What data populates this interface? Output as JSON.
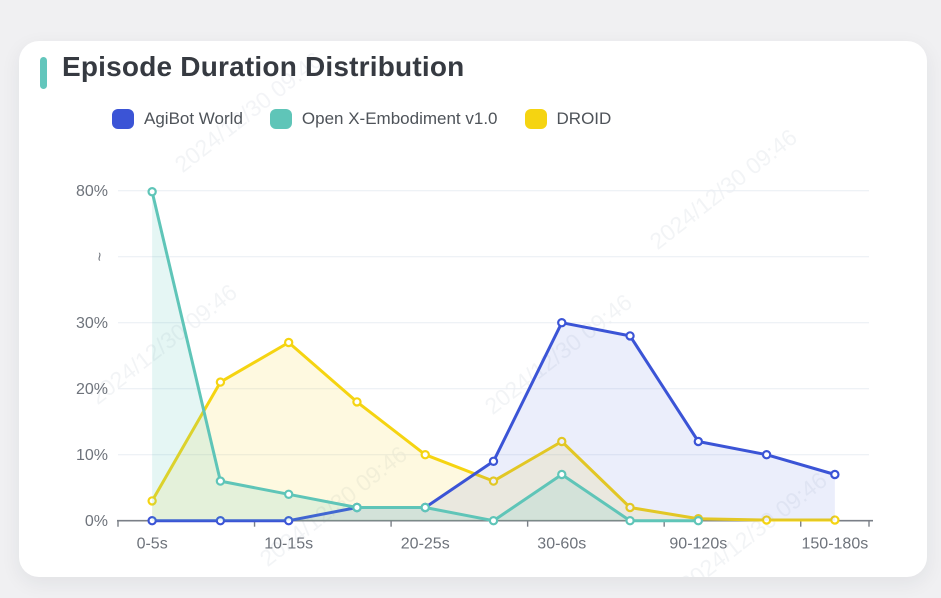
{
  "page": {
    "background": "#f0f0f2"
  },
  "header": {
    "title": "Episode Duration Distribution",
    "accent_color": "#63c6bc"
  },
  "legend": {
    "items": [
      {
        "label": "AgiBot World",
        "color": "#3b54d6"
      },
      {
        "label": "Open X-Embodiment v1.0",
        "color": "#5fc5b8"
      },
      {
        "label": "DROID",
        "color": "#f5d411"
      }
    ]
  },
  "watermark": {
    "text": "2024/12/30 09:46"
  },
  "chart_data": {
    "type": "line",
    "title": "Episode Duration Distribution",
    "legend_position": "top-left",
    "grid_on": true,
    "grid_color": "#e9edf4",
    "axis_color": "#7a7f87",
    "label_color": "#6e737b",
    "x_axis": {
      "categories": [
        "0-5s",
        "",
        "10-15s",
        "",
        "20-25s",
        "",
        "30-60s",
        "",
        "90-120s",
        "",
        "150-180s"
      ],
      "label_indices": [
        0,
        2,
        4,
        6,
        8,
        10
      ]
    },
    "y_axis": {
      "unit": "%",
      "ticks": [
        {
          "label": "0%",
          "value": 0
        },
        {
          "label": "10%",
          "value": 10
        },
        {
          "label": "20%",
          "value": 20
        },
        {
          "label": "30%",
          "value": 30
        },
        {
          "label": "~",
          "value": "break"
        },
        {
          "label": "80%",
          "value": 80
        }
      ],
      "break_between": [
        30,
        80
      ]
    },
    "series": [
      {
        "name": "AgiBot World",
        "color": "#3b54d6",
        "fill": "rgba(59,84,214,0.10)",
        "z": 2,
        "values": [
          0,
          0,
          0,
          2,
          2,
          9,
          30,
          28,
          12,
          10,
          7
        ]
      },
      {
        "name": "Open X-Embodiment v1.0",
        "color": "#5fc5b8",
        "fill": "rgba(95,197,184,0.16)",
        "z": 3,
        "values": [
          79.6,
          6,
          4,
          2,
          2,
          0,
          7,
          0,
          0,
          null,
          null
        ]
      },
      {
        "name": "DROID",
        "color": "#f5d411",
        "fill": "rgba(245,212,17,0.13)",
        "z": 1,
        "values": [
          3,
          21,
          27,
          18,
          10,
          6,
          12,
          2,
          0.3,
          0.1,
          0.1
        ]
      }
    ]
  }
}
